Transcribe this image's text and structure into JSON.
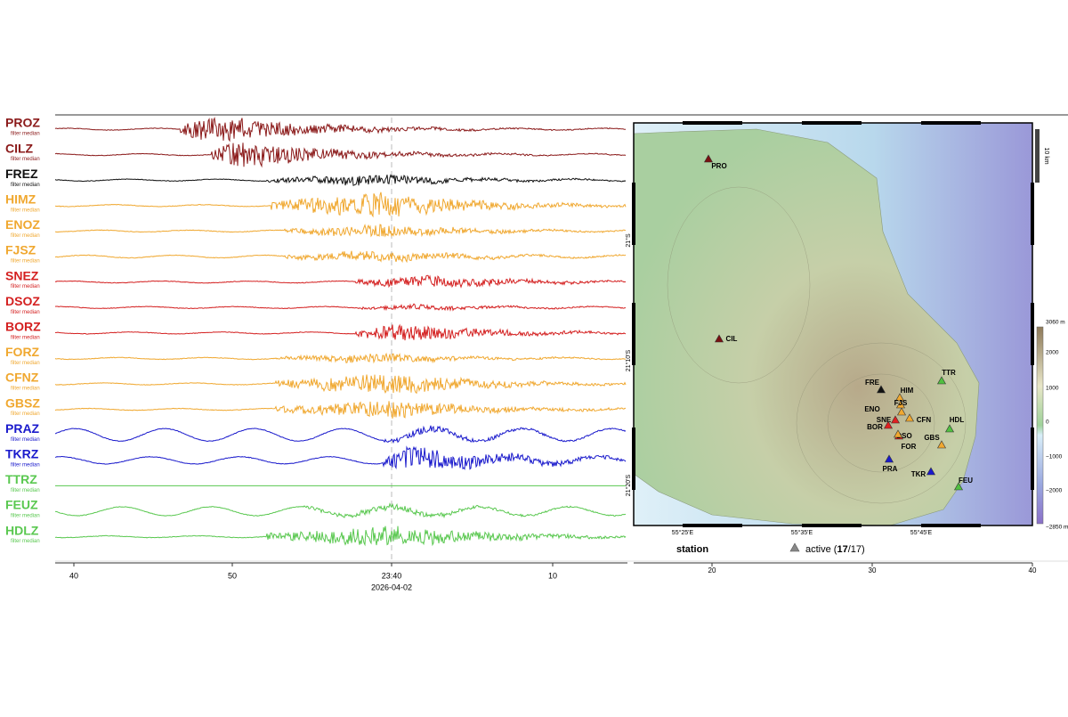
{
  "traces": [
    {
      "label": "PROZ",
      "color": "#8b1a1a"
    },
    {
      "label": "CILZ",
      "color": "#8b1a1a"
    },
    {
      "label": "FREZ",
      "color": "#111111"
    },
    {
      "label": "HIMZ",
      "color": "#f0a830"
    },
    {
      "label": "ENOZ",
      "color": "#f0a830"
    },
    {
      "label": "FJSZ",
      "color": "#f0a830"
    },
    {
      "label": "SNEZ",
      "color": "#d42020"
    },
    {
      "label": "DSOZ",
      "color": "#d42020"
    },
    {
      "label": "BORZ",
      "color": "#d42020"
    },
    {
      "label": "FORZ",
      "color": "#f0a830"
    },
    {
      "label": "CFNZ",
      "color": "#f0a830"
    },
    {
      "label": "GBSZ",
      "color": "#f0a830"
    },
    {
      "label": "PRAZ",
      "color": "#1a1acc"
    },
    {
      "label": "TKRZ",
      "color": "#1a1acc"
    },
    {
      "label": "TTRZ",
      "color": "#5ac850"
    },
    {
      "label": "FEUZ",
      "color": "#5ac850"
    },
    {
      "label": "HDLZ",
      "color": "#5ac850"
    }
  ],
  "trace_note": "filter median",
  "time_axis": {
    "ticks": [
      "40",
      "50",
      "23:40",
      "10"
    ],
    "date": "2026-04-02"
  },
  "map": {
    "stations": [
      {
        "name": "PRO",
        "color": "#7a1010"
      },
      {
        "name": "CIL",
        "color": "#7a1010"
      },
      {
        "name": "FRE",
        "color": "#111111"
      },
      {
        "name": "HIM",
        "color": "#f0a830"
      },
      {
        "name": "ENO",
        "color": "#f0a830"
      },
      {
        "name": "FJS",
        "color": "#f0a830"
      },
      {
        "name": "SNE",
        "color": "#e02020"
      },
      {
        "name": "CFN",
        "color": "#f0a830"
      },
      {
        "name": "BOR",
        "color": "#e02020"
      },
      {
        "name": "DSO",
        "color": "#e02020"
      },
      {
        "name": "FOR",
        "color": "#f0a830"
      },
      {
        "name": "GBS",
        "color": "#f0a830"
      },
      {
        "name": "HDL",
        "color": "#50c040"
      },
      {
        "name": "TTR",
        "color": "#50c040"
      },
      {
        "name": "PRA",
        "color": "#1a1acc"
      },
      {
        "name": "TKR",
        "color": "#1a1acc"
      },
      {
        "name": "FEU",
        "color": "#50c040"
      }
    ],
    "lon_labels": [
      "55°25'E",
      "55°35'E",
      "55°45'E"
    ],
    "lat_labels": [
      "21°S",
      "21°10'S",
      "21°20'S"
    ],
    "scale_bar": "10 km",
    "colorbar_labels": [
      "3060 m",
      "2000",
      "1000",
      "0",
      "−1000",
      "−2000",
      "−2850 m"
    ],
    "bottom_ticks": [
      "20",
      "30",
      "40"
    ]
  },
  "legend": {
    "title": "station",
    "prefix": "active (",
    "count": "17",
    "suffix": "/17)"
  }
}
